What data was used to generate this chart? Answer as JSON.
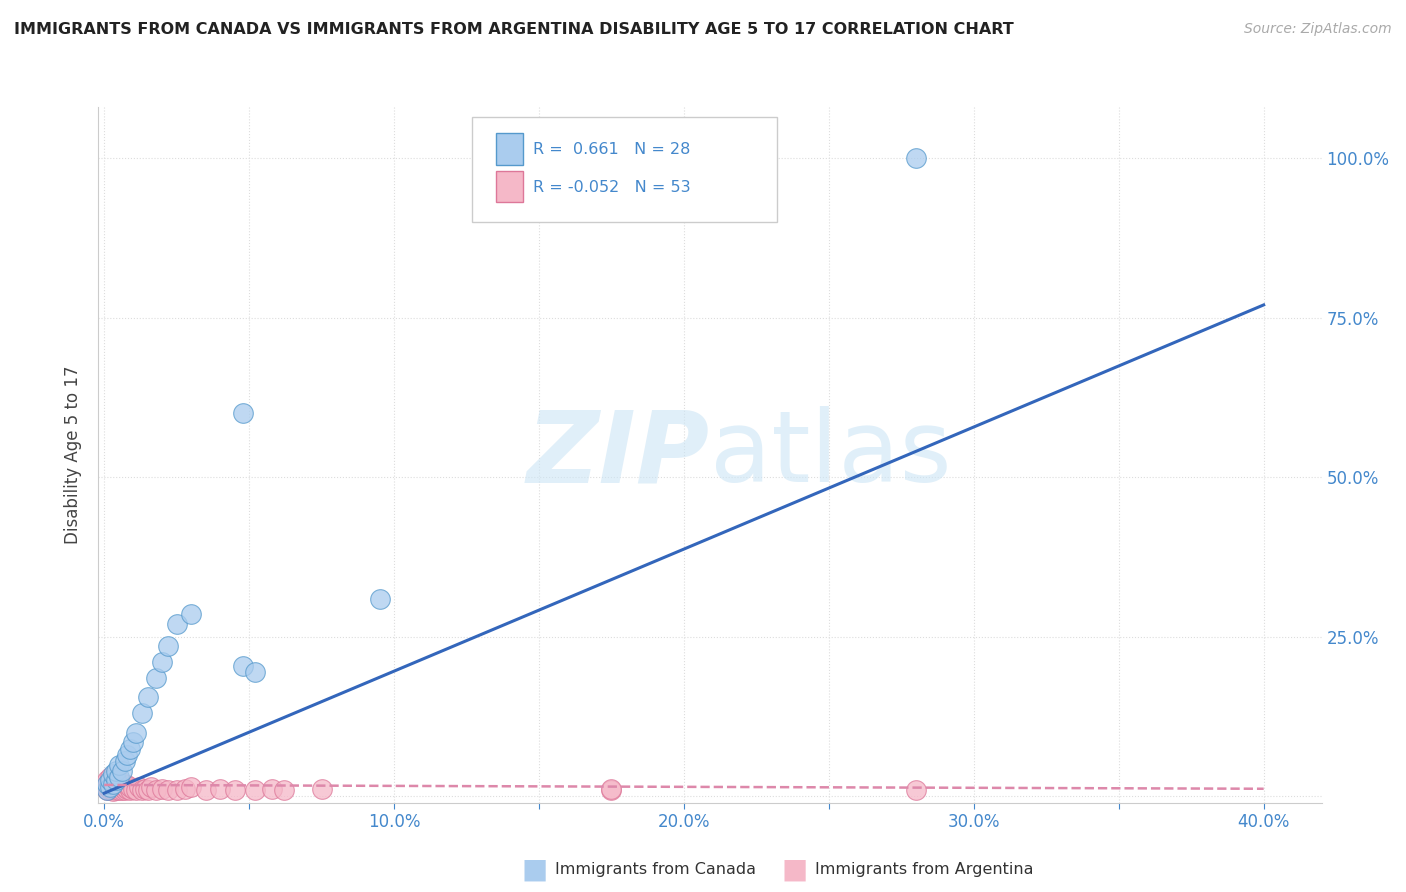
{
  "title": "IMMIGRANTS FROM CANADA VS IMMIGRANTS FROM ARGENTINA DISABILITY AGE 5 TO 17 CORRELATION CHART",
  "source": "Source: ZipAtlas.com",
  "ylabel": "Disability Age 5 to 17",
  "canada_R": 0.661,
  "canada_N": 28,
  "argentina_R": -0.052,
  "argentina_N": 53,
  "canada_color": "#aaccee",
  "canada_edge_color": "#5599cc",
  "argentina_color": "#f5b8c8",
  "argentina_edge_color": "#dd7799",
  "canada_line_color": "#3366bb",
  "argentina_line_color": "#dd88aa",
  "watermark_color": "#cce5f5",
  "title_color": "#222222",
  "source_color": "#aaaaaa",
  "tick_color": "#4488cc",
  "grid_color": "#dddddd",
  "ylabel_color": "#444444",
  "xlim": [
    -0.002,
    0.42
  ],
  "ylim": [
    -0.01,
    1.08
  ],
  "x_ticks": [
    0.0,
    0.05,
    0.1,
    0.15,
    0.2,
    0.25,
    0.3,
    0.35,
    0.4
  ],
  "x_tick_labels": [
    "0.0%",
    "",
    "10.0%",
    "",
    "20.0%",
    "",
    "30.0%",
    "",
    "40.0%"
  ],
  "y_ticks": [
    0.0,
    0.25,
    0.5,
    0.75,
    1.0
  ],
  "y_tick_labels_right": [
    "",
    "25.0%",
    "50.0%",
    "75.0%",
    "100.0%"
  ],
  "canada_line_x0": 0.0,
  "canada_line_y0": 0.005,
  "canada_line_x1": 0.4,
  "canada_line_y1": 0.77,
  "argentina_line_x0": 0.0,
  "argentina_line_y0": 0.018,
  "argentina_line_x1": 0.4,
  "argentina_line_y1": 0.012,
  "canada_x": [
    0.001,
    0.001,
    0.002,
    0.002,
    0.003,
    0.003,
    0.004,
    0.004,
    0.005,
    0.005,
    0.006,
    0.007,
    0.008,
    0.009,
    0.01,
    0.011,
    0.013,
    0.015,
    0.018,
    0.02,
    0.022,
    0.025,
    0.03,
    0.048,
    0.052,
    0.095,
    0.28,
    0.048
  ],
  "canada_y": [
    0.01,
    0.02,
    0.015,
    0.025,
    0.02,
    0.035,
    0.025,
    0.04,
    0.03,
    0.05,
    0.04,
    0.055,
    0.065,
    0.075,
    0.085,
    0.1,
    0.13,
    0.155,
    0.185,
    0.21,
    0.235,
    0.27,
    0.285,
    0.205,
    0.195,
    0.31,
    1.0,
    0.6
  ],
  "argentina_x": [
    0.001,
    0.001,
    0.001,
    0.001,
    0.002,
    0.002,
    0.002,
    0.002,
    0.003,
    0.003,
    0.003,
    0.003,
    0.003,
    0.004,
    0.004,
    0.004,
    0.004,
    0.005,
    0.005,
    0.005,
    0.005,
    0.006,
    0.006,
    0.006,
    0.007,
    0.007,
    0.008,
    0.008,
    0.009,
    0.009,
    0.01,
    0.011,
    0.012,
    0.013,
    0.014,
    0.015,
    0.016,
    0.018,
    0.02,
    0.022,
    0.025,
    0.028,
    0.03,
    0.035,
    0.04,
    0.045,
    0.052,
    0.175,
    0.175,
    0.28,
    0.058,
    0.062,
    0.075
  ],
  "argentina_y": [
    0.01,
    0.015,
    0.02,
    0.025,
    0.01,
    0.015,
    0.02,
    0.03,
    0.008,
    0.012,
    0.018,
    0.022,
    0.028,
    0.01,
    0.015,
    0.02,
    0.025,
    0.01,
    0.015,
    0.02,
    0.025,
    0.01,
    0.015,
    0.02,
    0.01,
    0.015,
    0.012,
    0.018,
    0.01,
    0.015,
    0.012,
    0.01,
    0.015,
    0.01,
    0.012,
    0.01,
    0.015,
    0.01,
    0.012,
    0.01,
    0.01,
    0.012,
    0.015,
    0.01,
    0.012,
    0.01,
    0.01,
    0.01,
    0.012,
    0.01,
    0.012,
    0.01,
    0.012
  ]
}
